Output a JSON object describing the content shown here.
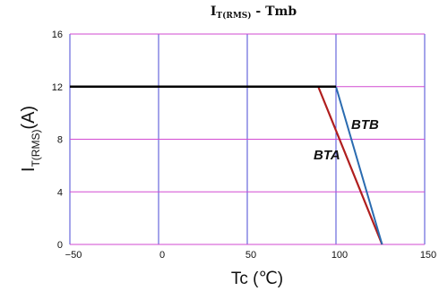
{
  "chart_data": {
    "type": "line",
    "title": {
      "main": "I",
      "sub": "T(RMS)",
      "rest": " - Tmb"
    },
    "ylabel": {
      "main": "I",
      "sub": "T(RMS)",
      "rest": "(A)"
    },
    "xlabel": "Tc (℃)",
    "xlim": [
      -50,
      150
    ],
    "ylim": [
      0,
      16
    ],
    "x_ticks": [
      -50,
      0,
      50,
      100,
      150
    ],
    "x_tick_labels": [
      "−50",
      "0",
      "50",
      "100",
      "150"
    ],
    "y_ticks": [
      0,
      4,
      8,
      12,
      16
    ],
    "y_tick_labels": [
      "0",
      "4",
      "8",
      "12",
      "16"
    ],
    "grid": true,
    "colors": {
      "vertical_grid": "#4a4ad6",
      "horizontal_grid": "#d24ad2",
      "plateau": "#000000",
      "BTA": "#b01e1e",
      "BTB": "#2a6bb0"
    },
    "series": [
      {
        "name": "BTB",
        "points": [
          [
            -50,
            12
          ],
          [
            100,
            12
          ],
          [
            126,
            0
          ]
        ]
      },
      {
        "name": "BTA",
        "points": [
          [
            90,
            12
          ],
          [
            126,
            0
          ]
        ]
      }
    ]
  }
}
